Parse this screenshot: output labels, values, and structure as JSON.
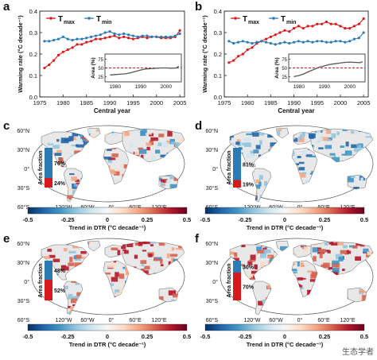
{
  "colors": {
    "tmax": "#d7191c",
    "tmin": "#2c7bb6",
    "dash": "#d7191c",
    "inset_line": "#555555",
    "warm_bar": "#d7191c",
    "cool_bar": "#2c7bb6"
  },
  "chart_data": [
    {
      "panel": "a",
      "type": "line",
      "xlabel": "Central year",
      "ylabel": "Warming rate (°C decade⁻¹)",
      "xlim": [
        1975,
        2006
      ],
      "ylim": [
        0,
        0.4
      ],
      "xticks": [
        1975,
        1980,
        1985,
        1990,
        1995,
        2000,
        2005
      ],
      "yticks": [
        0,
        0.1,
        0.2,
        0.3,
        0.4
      ],
      "legend": {
        "placement": "top-left",
        "entries": [
          "T_max",
          "T_min"
        ]
      },
      "x": [
        1976,
        1977,
        1978,
        1979,
        1980,
        1981,
        1982,
        1983,
        1984,
        1985,
        1986,
        1987,
        1988,
        1989,
        1990,
        1991,
        1992,
        1993,
        1994,
        1995,
        1996,
        1997,
        1998,
        1999,
        2000,
        2001,
        2002,
        2003,
        2004,
        2005
      ],
      "series": [
        {
          "name": "T_max",
          "values": [
            0.135,
            0.15,
            0.17,
            0.195,
            0.21,
            0.22,
            0.23,
            0.245,
            0.245,
            0.255,
            0.26,
            0.27,
            0.27,
            0.275,
            0.28,
            0.285,
            0.275,
            0.28,
            0.275,
            0.27,
            0.275,
            0.28,
            0.275,
            0.28,
            0.28,
            0.275,
            0.275,
            0.275,
            0.28,
            0.31
          ]
        },
        {
          "name": "T_min",
          "values": [
            0.26,
            0.26,
            0.265,
            0.27,
            0.28,
            0.27,
            0.265,
            0.27,
            0.27,
            0.275,
            0.28,
            0.285,
            0.29,
            0.3,
            0.305,
            0.295,
            0.29,
            0.295,
            0.29,
            0.285,
            0.28,
            0.285,
            0.285,
            0.28,
            0.28,
            0.28,
            0.28,
            0.28,
            0.285,
            0.295
          ]
        }
      ],
      "inset": {
        "ylabel": "Area (%)",
        "xticks": [
          1980,
          1990,
          2000
        ],
        "yticks": [
          25,
          50,
          75
        ],
        "xlim": [
          1976,
          2006
        ],
        "ylim": [
          10,
          90
        ],
        "reference_line": 50,
        "x": [
          1978,
          1980,
          1982,
          1984,
          1986,
          1988,
          1990,
          1992,
          1994,
          1996,
          1998,
          2000,
          2002,
          2004,
          2005
        ],
        "values": [
          30,
          31,
          32,
          33,
          36,
          40,
          44,
          47,
          48,
          49,
          50,
          50,
          49,
          50,
          55
        ]
      }
    },
    {
      "panel": "b",
      "type": "line",
      "xlabel": "Central year",
      "ylabel": "Warming rate (°C decade⁻¹)",
      "xlim": [
        1975,
        2006
      ],
      "ylim": [
        0,
        0.4
      ],
      "xticks": [
        1975,
        1980,
        1985,
        1990,
        1995,
        2000,
        2005
      ],
      "yticks": [
        0,
        0.1,
        0.2,
        0.3,
        0.4
      ],
      "legend": {
        "placement": "top-left",
        "entries": [
          "T_max",
          "T_min"
        ]
      },
      "x": [
        1976,
        1977,
        1978,
        1979,
        1980,
        1981,
        1982,
        1983,
        1984,
        1985,
        1986,
        1987,
        1988,
        1989,
        1990,
        1991,
        1992,
        1993,
        1994,
        1995,
        1996,
        1997,
        1998,
        1999,
        2000,
        2001,
        2002,
        2003,
        2004,
        2005
      ],
      "series": [
        {
          "name": "T_max",
          "values": [
            0.16,
            0.17,
            0.19,
            0.2,
            0.22,
            0.23,
            0.25,
            0.26,
            0.27,
            0.28,
            0.29,
            0.3,
            0.31,
            0.305,
            0.32,
            0.33,
            0.32,
            0.33,
            0.33,
            0.34,
            0.34,
            0.35,
            0.34,
            0.34,
            0.33,
            0.32,
            0.32,
            0.33,
            0.34,
            0.365
          ]
        },
        {
          "name": "T_min",
          "values": [
            0.26,
            0.25,
            0.255,
            0.26,
            0.255,
            0.25,
            0.255,
            0.26,
            0.255,
            0.25,
            0.245,
            0.25,
            0.255,
            0.25,
            0.255,
            0.26,
            0.255,
            0.26,
            0.255,
            0.26,
            0.26,
            0.255,
            0.255,
            0.26,
            0.26,
            0.255,
            0.26,
            0.27,
            0.275,
            0.3
          ]
        }
      ],
      "inset": {
        "ylabel": "Area (%)",
        "xticks": [
          1980,
          1990,
          2000
        ],
        "yticks": [
          25,
          50,
          75
        ],
        "xlim": [
          1976,
          2006
        ],
        "ylim": [
          10,
          90
        ],
        "reference_line": 50,
        "x": [
          1978,
          1980,
          1982,
          1984,
          1986,
          1988,
          1990,
          1992,
          1994,
          1996,
          1998,
          2000,
          2002,
          2004,
          2005
        ],
        "values": [
          25,
          28,
          33,
          40,
          46,
          52,
          56,
          60,
          62,
          64,
          66,
          67,
          66,
          65,
          68
        ]
      }
    }
  ],
  "panels": {
    "a": {
      "label": "a"
    },
    "b": {
      "label": "b"
    },
    "c": {
      "label": "c",
      "warm_pct": "76%",
      "cool_pct": "24%",
      "warm_fraction": 0.76,
      "cool_fraction": 0.24,
      "bar_label": "Area fraction",
      "field": "mixed"
    },
    "d": {
      "label": "d",
      "warm_pct": "81%",
      "cool_pct": "19%",
      "warm_fraction": 0.81,
      "cool_fraction": 0.19,
      "bar_label": "Area fraction",
      "field": "cool"
    },
    "e": {
      "label": "e",
      "warm_pct": "48%",
      "cool_pct": "52%",
      "warm_fraction": 0.48,
      "cool_fraction": 0.52,
      "bar_label": "Area fraction",
      "field": "warm"
    },
    "f": {
      "label": "f",
      "warm_pct": "30%",
      "cool_pct": "70%",
      "warm_fraction": 0.3,
      "cool_fraction": 0.7,
      "bar_label": "Area fraction",
      "field": "warm"
    }
  },
  "legend_labels": {
    "tmax": "T",
    "tmax_sub": "max",
    "tmin": "T",
    "tmin_sub": "min"
  },
  "map_axes": {
    "lat_labels": [
      "60°N",
      "30°N",
      "0°",
      "30°S",
      "60°S"
    ],
    "lon_labels": [
      "120°W",
      "60°W",
      "0°",
      "60°E",
      "120°E"
    ]
  },
  "colorbar": {
    "ticks": [
      "-0.5",
      "-0.25",
      "0",
      "0.25",
      "0.5"
    ],
    "label": "Trend in DTR (°C decade⁻¹)"
  },
  "watermark": "生态学者"
}
